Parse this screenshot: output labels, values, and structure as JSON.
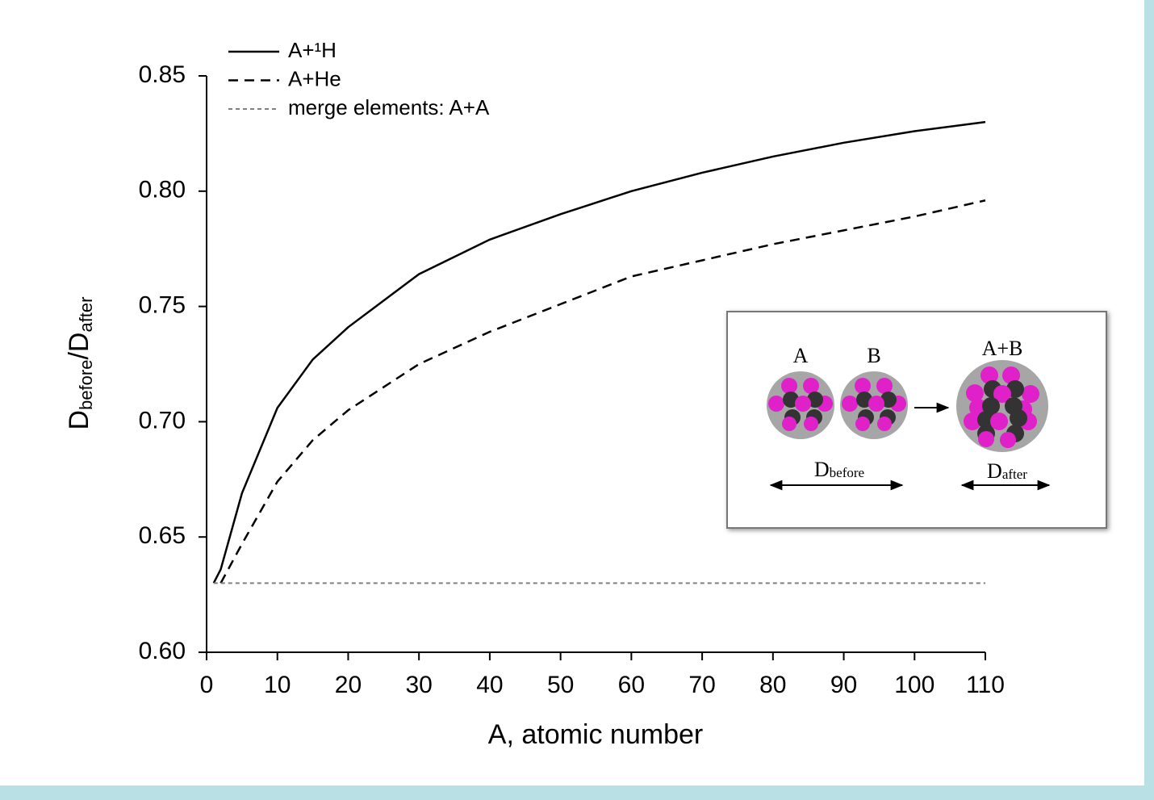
{
  "chart_data": {
    "type": "line",
    "x": [
      1,
      2,
      5,
      10,
      15,
      20,
      30,
      40,
      50,
      60,
      70,
      80,
      90,
      100,
      110
    ],
    "series": [
      {
        "name": "A+¹H",
        "color": "#000000",
        "dash": "solid",
        "values": [
          0.63,
          0.636,
          0.669,
          0.706,
          0.727,
          0.741,
          0.764,
          0.779,
          0.79,
          0.8,
          0.808,
          0.815,
          0.821,
          0.826,
          0.83
        ]
      },
      {
        "name": "A+He",
        "color": "#000000",
        "dash": "dashed",
        "values": [
          null,
          0.63,
          0.647,
          0.674,
          0.692,
          0.705,
          0.725,
          0.739,
          0.751,
          0.763,
          0.77,
          0.777,
          0.783,
          0.789,
          0.796
        ]
      },
      {
        "name": "merge elements: A+A",
        "color": "#808080",
        "dash": "dotted",
        "values": [
          0.63,
          0.63,
          0.63,
          0.63,
          0.63,
          0.63,
          0.63,
          0.63,
          0.63,
          0.63,
          0.63,
          0.63,
          0.63,
          0.63,
          0.63
        ]
      }
    ],
    "xlabel": "A, atomic number",
    "ylabel_parts": [
      "D",
      "before",
      "/D",
      "after"
    ],
    "xlim": [
      0,
      110
    ],
    "xticks": [
      0,
      10,
      20,
      30,
      40,
      50,
      60,
      70,
      80,
      90,
      100,
      110
    ],
    "ylim": [
      0.6,
      0.85
    ],
    "yticks": [
      {
        "value": 0.6,
        "label": "0.60"
      },
      {
        "value": 0.65,
        "label": "0.65"
      },
      {
        "value": 0.7,
        "label": "0.70"
      },
      {
        "value": 0.75,
        "label": "0.75"
      },
      {
        "value": 0.8,
        "label": "0.80"
      },
      {
        "value": 0.85,
        "label": "0.85"
      }
    ],
    "legend": "top-left",
    "grid": false,
    "inset": {
      "label_a": "A",
      "label_b": "B",
      "label_ab": "A+B",
      "d_before": [
        "D",
        "before"
      ],
      "d_after": [
        "D",
        "after"
      ]
    }
  }
}
